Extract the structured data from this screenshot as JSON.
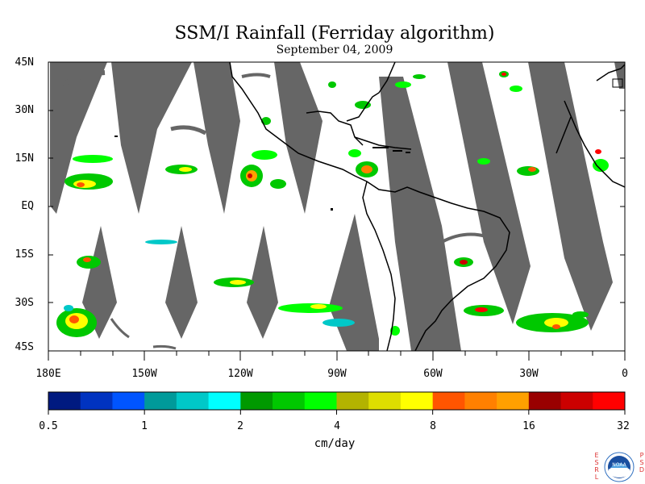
{
  "title": "SSM/I Rainfall (Ferriday algorithm)",
  "subtitle": "September 04, 2009",
  "lat_labels": [
    "45N",
    "30N",
    "15N",
    "EQ",
    "15S",
    "30S",
    "45S"
  ],
  "lon_labels": [
    "180E",
    "150W",
    "120W",
    "90W",
    "60W",
    "30W",
    "0"
  ],
  "colorbar": {
    "labels": [
      "0.5",
      "1",
      "2",
      "4",
      "8",
      "16",
      "32"
    ],
    "units": "cm/day",
    "colors": [
      "#001a80",
      "#0033c0",
      "#0055ff",
      "#009a9a",
      "#00c8c8",
      "#00ffff",
      "#009900",
      "#00c800",
      "#00ff00",
      "#b3b300",
      "#dede00",
      "#ffff00",
      "#ff5500",
      "#ff8000",
      "#ffa000",
      "#990000",
      "#cc0000",
      "#ff0000"
    ]
  },
  "map": {
    "projection": "cylindrical",
    "lon_range": [
      -180,
      0
    ],
    "lat_range": [
      -45,
      45
    ],
    "swath_color": "#666666",
    "land_outline_color": "#000000"
  },
  "logo": {
    "left_text": "ESRL",
    "right_text": "PSD",
    "center_text": "NOAA"
  }
}
